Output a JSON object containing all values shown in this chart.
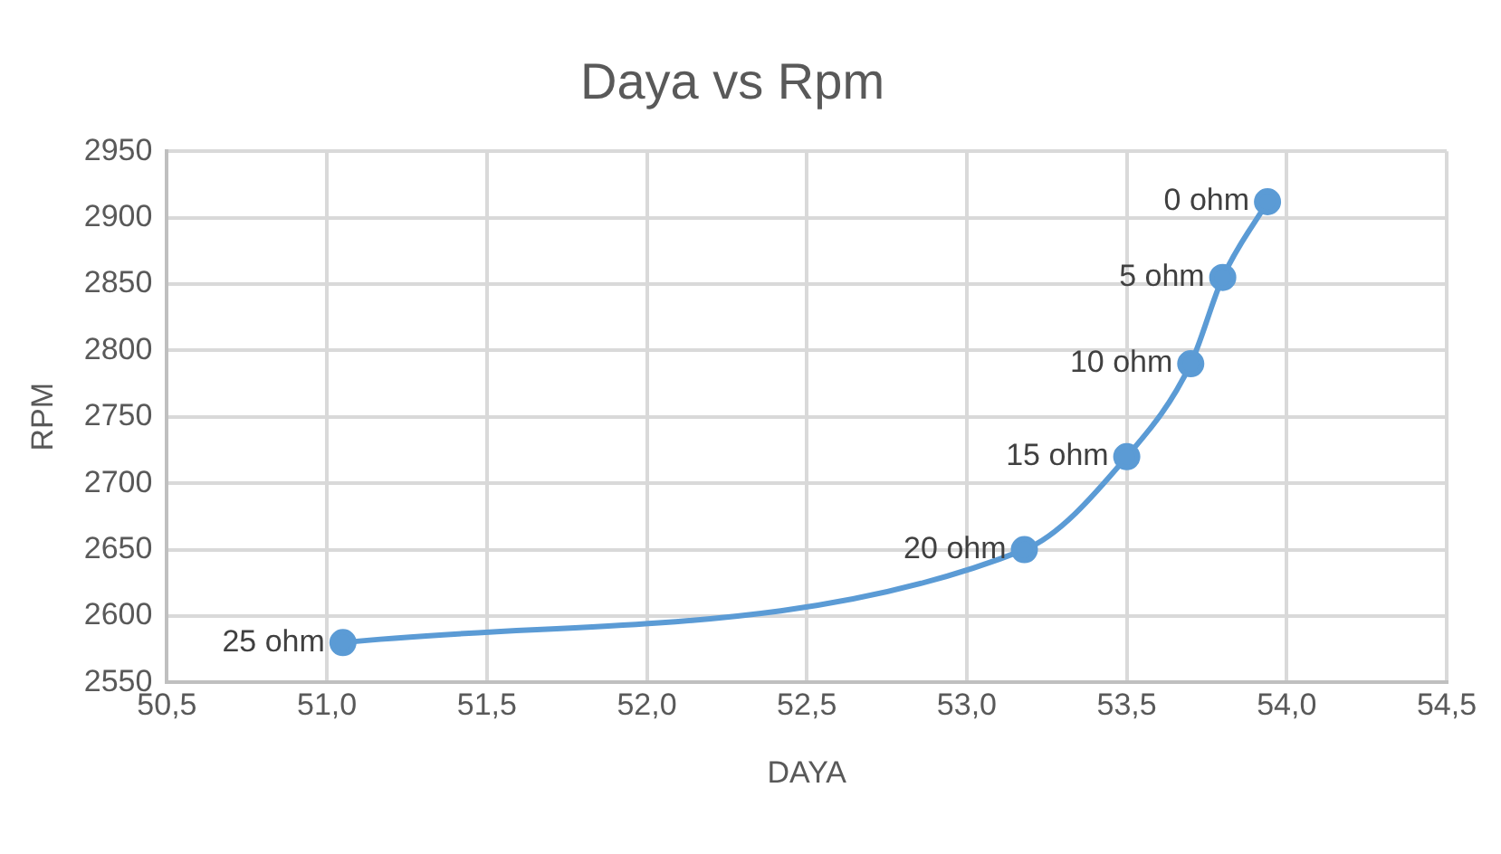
{
  "chart_data": {
    "type": "line",
    "title": "Daya vs Rpm",
    "xlabel": "DAYA",
    "ylabel": "RPM",
    "x": [
      51.05,
      53.18,
      53.5,
      53.7,
      53.8,
      53.94
    ],
    "series": [
      {
        "color": "#5b9bd5",
        "values": [
          2580,
          2650,
          2720,
          2790,
          2855,
          2912
        ]
      }
    ],
    "xlim": [
      50.5,
      54.5
    ],
    "xticks": [
      {
        "value": 50.5,
        "label": "50,5"
      },
      {
        "value": 51,
        "label": "51,0"
      },
      {
        "value": 51.5,
        "label": "51,5"
      },
      {
        "value": 52,
        "label": "52,0"
      },
      {
        "value": 52.5,
        "label": "52,5"
      },
      {
        "value": 53,
        "label": "53,0"
      },
      {
        "value": 53.5,
        "label": "53,5"
      },
      {
        "value": 54,
        "label": "54,0"
      },
      {
        "value": 54.5,
        "label": "54,5"
      }
    ],
    "ylim": [
      2550,
      2950
    ],
    "yticks": [
      2550,
      2600,
      2650,
      2700,
      2750,
      2800,
      2850,
      2900,
      2950
    ],
    "grid": true,
    "marker": "circle",
    "line_style": "solid",
    "legend": false,
    "annotations": [
      {
        "text": "25 ohm",
        "x": 51.05,
        "y": 2580
      },
      {
        "text": "20 ohm",
        "x": 53.18,
        "y": 2650
      },
      {
        "text": "15 ohm",
        "x": 53.5,
        "y": 2720
      },
      {
        "text": "10 ohm",
        "x": 53.7,
        "y": 2790
      },
      {
        "text": "5 ohm",
        "x": 53.8,
        "y": 2855
      },
      {
        "text": "0 ohm",
        "x": 53.94,
        "y": 2912
      }
    ]
  }
}
